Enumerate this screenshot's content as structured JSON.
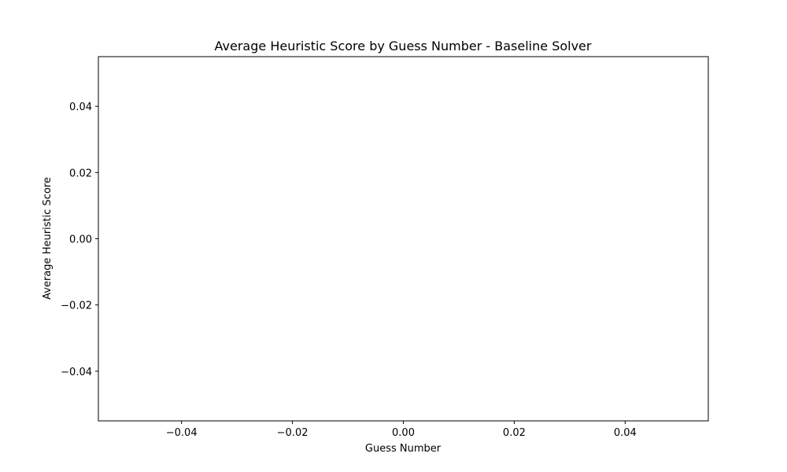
{
  "chart_data": {
    "type": "line",
    "title": "Average Heuristic Score by Guess Number - Baseline Solver",
    "xlabel": "Guess Number",
    "ylabel": "Average Heuristic Score",
    "series": [
      {
        "x": [],
        "y": []
      }
    ],
    "xlim": [
      -0.055,
      0.055
    ],
    "ylim": [
      -0.055,
      0.055
    ],
    "x_ticks": [
      {
        "value": -0.04,
        "label": "−0.04"
      },
      {
        "value": -0.02,
        "label": "−0.02"
      },
      {
        "value": 0.0,
        "label": "0.00"
      },
      {
        "value": 0.02,
        "label": "0.02"
      },
      {
        "value": 0.04,
        "label": "0.04"
      }
    ],
    "y_ticks": [
      {
        "value": 0.04,
        "label": "0.04"
      },
      {
        "value": 0.02,
        "label": "0.02"
      },
      {
        "value": 0.0,
        "label": "0.00"
      },
      {
        "value": -0.02,
        "label": "−0.02"
      },
      {
        "value": -0.04,
        "label": "−0.04"
      }
    ],
    "grid": false,
    "legend": "none"
  }
}
